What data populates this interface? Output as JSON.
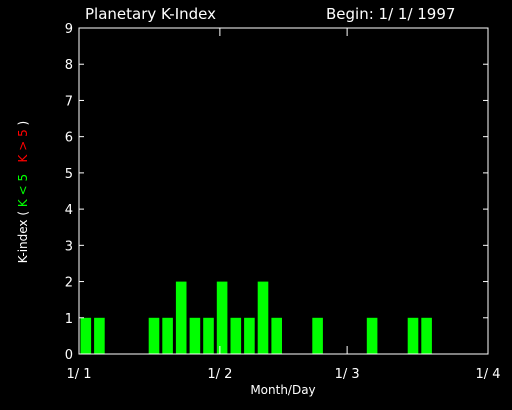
{
  "chart_data": {
    "type": "bar",
    "title": "Planetary K-Index",
    "begin_label": "Begin: 1/ 1/ 1997",
    "xlabel": "Month/Day",
    "ylabel_prefix": "K-index",
    "ylabel_open": "(",
    "ylabel_green": "K < 5",
    "ylabel_red": "K > 5",
    "ylabel_close": ")",
    "ylim": [
      0,
      9
    ],
    "y_ticks": [
      "0",
      "1",
      "2",
      "3",
      "4",
      "5",
      "6",
      "7",
      "8",
      "9"
    ],
    "x_ticks": [
      "1/ 1",
      "1/ 2",
      "1/ 3",
      "1/ 4"
    ],
    "x_tick_days": [
      0,
      31,
      59,
      90
    ],
    "x_range_days": [
      0,
      90
    ],
    "bar_width_days": 3,
    "bars_x_days": [
      0,
      3,
      6,
      9,
      12,
      15,
      18,
      21,
      24,
      27,
      30,
      33,
      36,
      39,
      42,
      45,
      48,
      51,
      54,
      57,
      60,
      63,
      66,
      69,
      72,
      75,
      78,
      81,
      84,
      87
    ],
    "values": [
      1,
      1,
      0,
      0,
      0,
      1,
      1,
      2,
      1,
      1,
      2,
      1,
      1,
      2,
      1,
      0,
      0,
      1,
      0,
      0,
      0,
      1,
      0,
      0,
      1,
      1,
      0,
      0,
      0,
      0
    ],
    "color_low": "#00ff00",
    "color_high": "#ff0000",
    "grid": false
  }
}
